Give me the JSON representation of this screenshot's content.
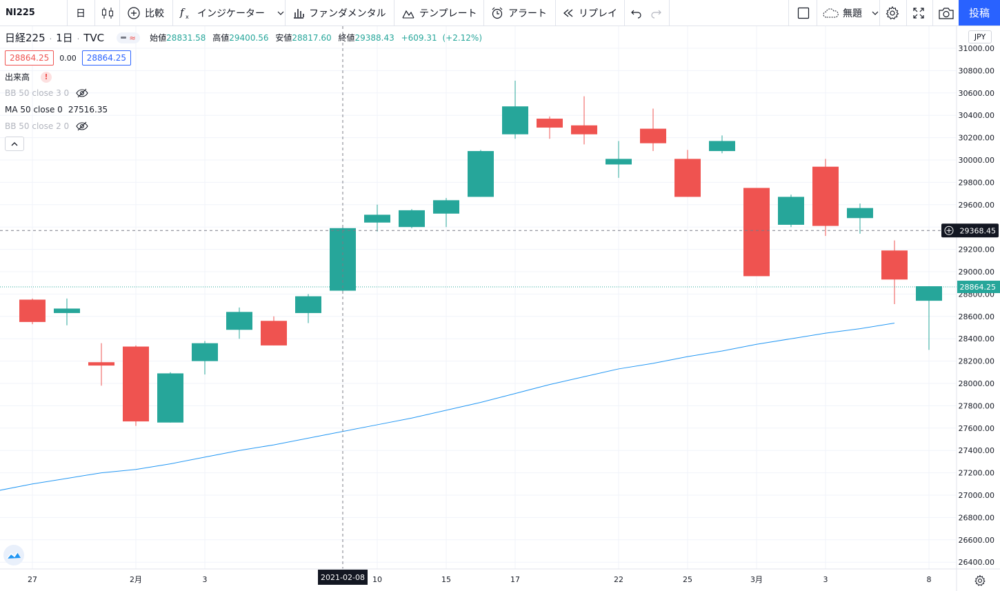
{
  "toolbar": {
    "symbol": "NI225",
    "interval": "日",
    "compare_label": "比較",
    "indicators_label": "インジケーター",
    "fundamentals_label": "ファンダメンタル",
    "templates_label": "テンプレート",
    "alert_label": "アラート",
    "replay_label": "リプレイ",
    "layout_name": "無題",
    "publish_label": "投稿",
    "icons": [
      "candles-icon",
      "plus-circle-icon",
      "fx-icon",
      "bar-chart-icon",
      "template-icon",
      "alarm-clock-icon",
      "replay-icon",
      "undo-icon",
      "redo-icon",
      "square-icon",
      "cloud-icon",
      "gear-icon",
      "fullscreen-icon",
      "camera-icon"
    ]
  },
  "legend": {
    "title": "日経225",
    "interval": "1日",
    "exchange": "TVC",
    "open_label": "始値",
    "open": "28831.58",
    "high_label": "高値",
    "high": "29400.56",
    "low_label": "安値",
    "low": "28817.60",
    "close_label": "終値",
    "close": "29388.43",
    "change": "+609.31",
    "change_pct": "(+2.12%)",
    "bid": "28864.25",
    "spread": "0.00",
    "ask": "28864.25",
    "volume_label": "出来高",
    "indicators": [
      {
        "label": "BB 50 close 3 0",
        "value": "",
        "hidden": true
      },
      {
        "label": "MA 50 close 0",
        "value": "27516.35",
        "hidden": false
      },
      {
        "label": "BB 50 close 2 0",
        "value": "",
        "hidden": true
      }
    ]
  },
  "colors": {
    "up": "#26a69a",
    "down": "#ef5350",
    "ma": "#2196f3",
    "accent": "#2962ff",
    "crosshair_tag": "#131722"
  },
  "chart_data": {
    "type": "candlestick",
    "currency": "JPY",
    "ylim": [
      26300,
      31100
    ],
    "y_ticks": [
      26400,
      26600,
      26800,
      27000,
      27200,
      27400,
      27600,
      27800,
      28000,
      28200,
      28400,
      28600,
      28800,
      29000,
      29200,
      29400,
      29600,
      29800,
      30000,
      30200,
      30400,
      30600,
      30800,
      31000
    ],
    "x_tick_labels": [
      {
        "index": 0,
        "label": "27"
      },
      {
        "index": 3,
        "label": "2月"
      },
      {
        "index": 5,
        "label": "3"
      },
      {
        "index": 10,
        "label": "10"
      },
      {
        "index": 12,
        "label": "15"
      },
      {
        "index": 14,
        "label": "17"
      },
      {
        "index": 17,
        "label": "22"
      },
      {
        "index": 19,
        "label": "25"
      },
      {
        "index": 21,
        "label": "3月"
      },
      {
        "index": 23,
        "label": "3"
      },
      {
        "index": 26,
        "label": "8"
      }
    ],
    "candles": [
      [
        28750,
        28760,
        28530,
        28550
      ],
      [
        28630,
        28760,
        28520,
        28670
      ],
      [
        28190,
        28360,
        27980,
        28160
      ],
      [
        28330,
        28340,
        27620,
        27660
      ],
      [
        27650,
        28100,
        27650,
        28090
      ],
      [
        28200,
        28380,
        28080,
        28360
      ],
      [
        28480,
        28680,
        28400,
        28640
      ],
      [
        28560,
        28600,
        28340,
        28340
      ],
      [
        28630,
        28800,
        28540,
        28780
      ],
      [
        28830,
        29400,
        28820,
        29390
      ],
      [
        29440,
        29600,
        29360,
        29510
      ],
      [
        29400,
        29560,
        29390,
        29550
      ],
      [
        29520,
        29660,
        29400,
        29640
      ],
      [
        29670,
        30090,
        29670,
        30080
      ],
      [
        30230,
        30710,
        30190,
        30480
      ],
      [
        30370,
        30390,
        30190,
        30290
      ],
      [
        30310,
        30570,
        30140,
        30230
      ],
      [
        29960,
        30170,
        29840,
        30010
      ],
      [
        30280,
        30460,
        30080,
        30150
      ],
      [
        30010,
        30090,
        29670,
        29670
      ],
      [
        30080,
        30220,
        30060,
        30170
      ],
      [
        29750,
        29750,
        28960,
        28960
      ],
      [
        29420,
        29690,
        29400,
        29670
      ],
      [
        29940,
        30010,
        29320,
        29410
      ],
      [
        29480,
        29610,
        29340,
        29570
      ],
      [
        29190,
        29280,
        28710,
        28930
      ],
      [
        28740,
        28870,
        28300,
        28870
      ]
    ],
    "ma_series": {
      "name": "MA 50 close 0",
      "start_index": -1,
      "values": [
        27040,
        27100,
        27150,
        27200,
        27230,
        27280,
        27340,
        27400,
        27450,
        27510,
        27570,
        27630,
        27690,
        27760,
        27830,
        27910,
        27990,
        28060,
        28130,
        28180,
        28240,
        28290,
        28350,
        28400,
        28450,
        28490,
        28540
      ]
    },
    "crosshair": {
      "index": 9,
      "price": 29368.45,
      "date_label": "2021-02-08",
      "price_label": "29368.45"
    },
    "last_price": {
      "price": 28864.25,
      "label": "28864.25"
    }
  }
}
